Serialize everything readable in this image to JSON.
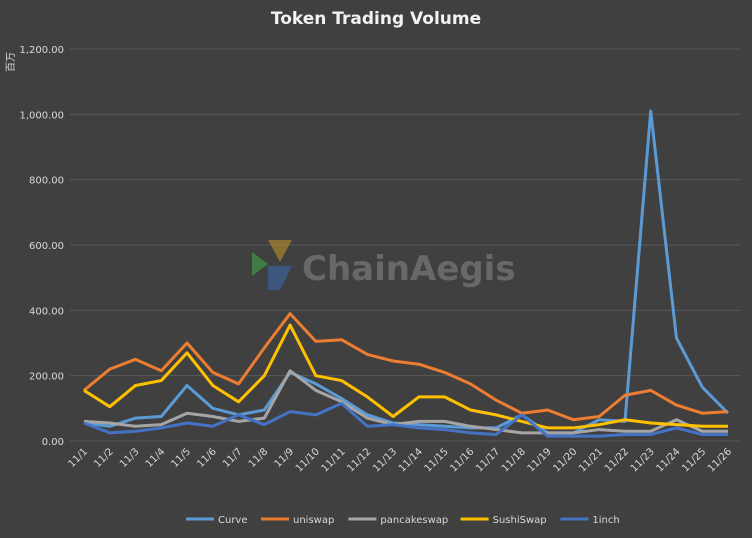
{
  "chart_data": {
    "type": "line",
    "title": "Token Trading Volume",
    "ylabel": "百万",
    "xlabel": "",
    "ylim": [
      0,
      1200
    ],
    "yticks": [
      0,
      200,
      400,
      600,
      800,
      1000,
      1200
    ],
    "ytick_labels": [
      "0.00",
      "200.00",
      "400.00",
      "600.00",
      "800.00",
      "1,000.00",
      "1,200.00"
    ],
    "grid": true,
    "legend_position": "bottom",
    "categories": [
      "11/1",
      "11/2",
      "11/3",
      "11/4",
      "11/5",
      "11/6",
      "11/7",
      "11/8",
      "11/9",
      "11/10",
      "11/11",
      "11/12",
      "11/13",
      "11/14",
      "11/15",
      "11/16",
      "11/17",
      "11/18",
      "11/19",
      "11/20",
      "11/21",
      "11/22",
      "11/23",
      "11/24",
      "11/25",
      "11/26"
    ],
    "series": [
      {
        "name": "Curve",
        "color": "#5B9BD5",
        "values": [
          55,
          45,
          70,
          75,
          170,
          100,
          80,
          95,
          210,
          175,
          130,
          80,
          55,
          50,
          45,
          40,
          40,
          80,
          25,
          25,
          65,
          60,
          1010,
          315,
          165,
          85
        ]
      },
      {
        "name": "uniswap",
        "color": "#ED7D31",
        "values": [
          155,
          220,
          250,
          215,
          300,
          210,
          175,
          285,
          390,
          305,
          310,
          265,
          245,
          235,
          210,
          175,
          125,
          85,
          95,
          65,
          75,
          140,
          155,
          110,
          85,
          90
        ]
      },
      {
        "name": "pancakeswap",
        "color": "#A5A5A5",
        "values": [
          60,
          55,
          45,
          50,
          85,
          75,
          60,
          70,
          215,
          155,
          120,
          70,
          50,
          60,
          60,
          45,
          35,
          25,
          25,
          25,
          35,
          30,
          30,
          65,
          30,
          30
        ]
      },
      {
        "name": "SushiSwap",
        "color": "#FFC000",
        "values": [
          155,
          105,
          170,
          185,
          270,
          170,
          120,
          200,
          355,
          200,
          185,
          135,
          75,
          135,
          135,
          95,
          80,
          60,
          40,
          40,
          50,
          65,
          55,
          50,
          45,
          45
        ]
      },
      {
        "name": "1inch",
        "color": "#4472C4",
        "values": [
          55,
          25,
          30,
          40,
          55,
          45,
          80,
          50,
          90,
          80,
          115,
          45,
          50,
          40,
          35,
          25,
          20,
          80,
          15,
          15,
          15,
          20,
          20,
          40,
          20,
          20
        ]
      }
    ]
  },
  "watermark": "ChainAegis"
}
